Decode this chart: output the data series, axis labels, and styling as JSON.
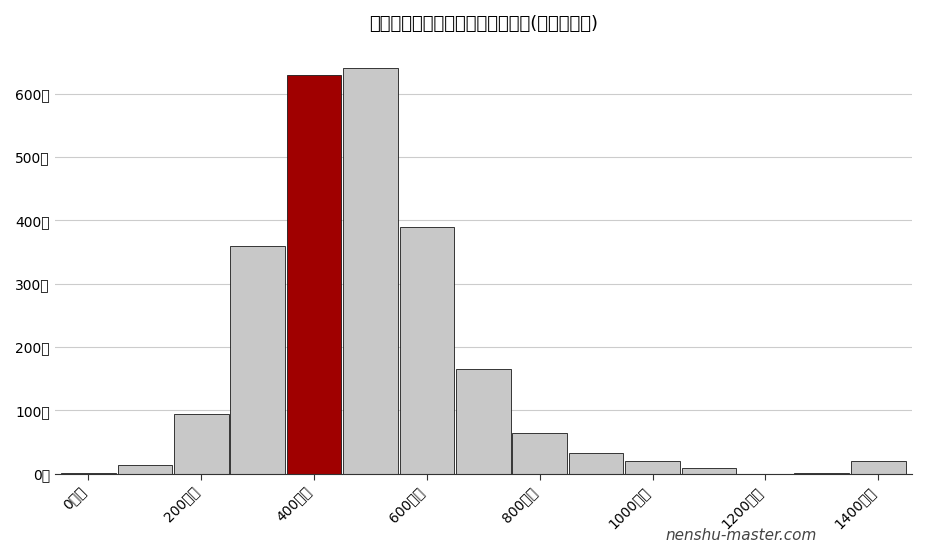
{
  "title": "アルファポリスの年収ポジション(関東地方内)",
  "x_tick_labels": [
    "0万円",
    "200万円",
    "400万円",
    "600万円",
    "800万円",
    "1000万円",
    "1200万円",
    "1400万円"
  ],
  "x_tick_positions": [
    0,
    2,
    4,
    6,
    8,
    10,
    12,
    14
  ],
  "bar_centers": [
    0,
    1,
    2,
    3,
    4,
    5,
    6,
    7,
    8,
    9,
    10,
    11,
    12,
    13,
    14
  ],
  "bar_heights": [
    2,
    14,
    95,
    360,
    630,
    640,
    390,
    165,
    65,
    33,
    20,
    10,
    0,
    2,
    20
  ],
  "highlight_index": 4,
  "bar_color_normal": "#c8c8c8",
  "bar_color_highlight": "#a00000",
  "bar_edge_color": "#1a1a1a",
  "ytick_labels": [
    "0社",
    "100社",
    "200社",
    "300社",
    "400社",
    "500社",
    "600社"
  ],
  "ytick_values": [
    0,
    100,
    200,
    300,
    400,
    500,
    600
  ],
  "ylim": [
    0,
    680
  ],
  "xlim": [
    -0.6,
    14.6
  ],
  "background_color": "#ffffff",
  "grid_color": "#cccccc",
  "watermark": "nenshu-master.com",
  "title_fontsize": 13,
  "tick_fontsize": 10,
  "watermark_fontsize": 11
}
